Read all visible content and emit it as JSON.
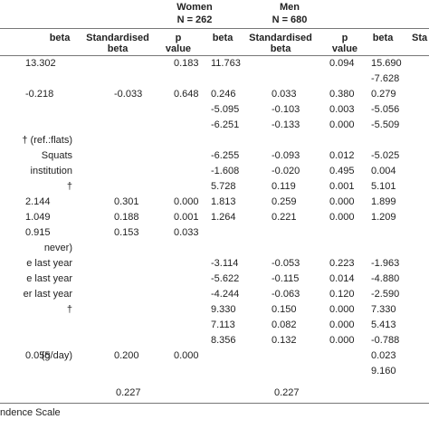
{
  "groups": [
    {
      "name": "Women",
      "n": "N = 262"
    },
    {
      "name": "Men",
      "n": "N = 680"
    }
  ],
  "col_headers": {
    "women_beta": "beta",
    "women_std": "Standardised beta",
    "women_p": "p value",
    "men_beta": "beta",
    "men_std": "Standardised beta",
    "men_p": "p value",
    "extra_beta": "beta",
    "extra_std_partial": "Sta"
  },
  "rows": [
    {
      "label": "",
      "w_beta": "13.302",
      "w_std": "",
      "w_p": "0.183",
      "m_beta": "11.763",
      "m_std": "",
      "m_p": "0.094",
      "x_beta": "15.690"
    },
    {
      "label": "",
      "w_beta": "",
      "w_std": "",
      "w_p": "",
      "m_beta": "",
      "m_std": "",
      "m_p": "",
      "x_beta": "-7.628"
    },
    {
      "label": "",
      "w_beta": "-0.218",
      "w_std": "-0.033",
      "w_p": "0.648",
      "m_beta": "0.246",
      "m_std": "0.033",
      "m_p": "0.380",
      "x_beta": "0.279"
    },
    {
      "label": "",
      "w_beta": "",
      "w_std": "",
      "w_p": "",
      "m_beta": "-5.095",
      "m_std": "-0.103",
      "m_p": "0.003",
      "x_beta": "-5.056"
    },
    {
      "label": "",
      "w_beta": "",
      "w_std": "",
      "w_p": "",
      "m_beta": "-6.251",
      "m_std": "-0.133",
      "m_p": "0.000",
      "x_beta": "-5.509"
    },
    {
      "label": "† (ref.:flats)",
      "w_beta": "",
      "w_std": "",
      "w_p": "",
      "m_beta": "",
      "m_std": "",
      "m_p": "",
      "x_beta": ""
    },
    {
      "label": "Squats",
      "w_beta": "",
      "w_std": "",
      "w_p": "",
      "m_beta": "-6.255",
      "m_std": "-0.093",
      "m_p": "0.012",
      "x_beta": "-5.025"
    },
    {
      "label": "institution",
      "w_beta": "",
      "w_std": "",
      "w_p": "",
      "m_beta": "-1.608",
      "m_std": "-0.020",
      "m_p": "0.495",
      "x_beta": "0.004"
    },
    {
      "label": "†",
      "w_beta": "",
      "w_std": "",
      "w_p": "",
      "m_beta": "5.728",
      "m_std": "0.119",
      "m_p": "0.001",
      "x_beta": "5.101"
    },
    {
      "label": "",
      "w_beta": "2.144",
      "w_std": "0.301",
      "w_p": "0.000",
      "m_beta": "1.813",
      "m_std": "0.259",
      "m_p": "0.000",
      "x_beta": "1.899"
    },
    {
      "label": "",
      "w_beta": "1.049",
      "w_std": "0.188",
      "w_p": "0.001",
      "m_beta": "1.264",
      "m_std": "0.221",
      "m_p": "0.000",
      "x_beta": "1.209"
    },
    {
      "label": "",
      "w_beta": "0.915",
      "w_std": "0.153",
      "w_p": "0.033",
      "m_beta": "",
      "m_std": "",
      "m_p": "",
      "x_beta": ""
    },
    {
      "label": "never)",
      "w_beta": "",
      "w_std": "",
      "w_p": "",
      "m_beta": "",
      "m_std": "",
      "m_p": "",
      "x_beta": ""
    },
    {
      "label": "e last year",
      "w_beta": "",
      "w_std": "",
      "w_p": "",
      "m_beta": "-3.114",
      "m_std": "-0.053",
      "m_p": "0.223",
      "x_beta": "-1.963"
    },
    {
      "label": "e last year",
      "w_beta": "",
      "w_std": "",
      "w_p": "",
      "m_beta": "-5.622",
      "m_std": "-0.115",
      "m_p": "0.014",
      "x_beta": "-4.880"
    },
    {
      "label": "er last year",
      "w_beta": "",
      "w_std": "",
      "w_p": "",
      "m_beta": "-4.244",
      "m_std": "-0.063",
      "m_p": "0.120",
      "x_beta": "-2.590"
    },
    {
      "label": "†",
      "w_beta": "",
      "w_std": "",
      "w_p": "",
      "m_beta": "9.330",
      "m_std": "0.150",
      "m_p": "0.000",
      "x_beta": "7.330"
    },
    {
      "label": "",
      "w_beta": "",
      "w_std": "",
      "w_p": "",
      "m_beta": "7.113",
      "m_std": "0.082",
      "m_p": "0.000",
      "x_beta": "5.413"
    },
    {
      "label": "",
      "w_beta": "",
      "w_std": "",
      "w_p": "",
      "m_beta": "8.356",
      "m_std": "0.132",
      "m_p": "0.000",
      "x_beta": "-0.788"
    },
    {
      "label": "(g/day)",
      "w_beta": "0.055",
      "w_std": "0.200",
      "w_p": "0.000",
      "m_beta": "",
      "m_std": "",
      "m_p": "",
      "x_beta": "0.023"
    },
    {
      "label": "",
      "w_beta": "",
      "w_std": "",
      "w_p": "",
      "m_beta": "",
      "m_std": "",
      "m_p": "",
      "x_beta": "9.160"
    }
  ],
  "r2": {
    "women": "0.227",
    "men": "0.227"
  },
  "footnote": "ndence Scale"
}
